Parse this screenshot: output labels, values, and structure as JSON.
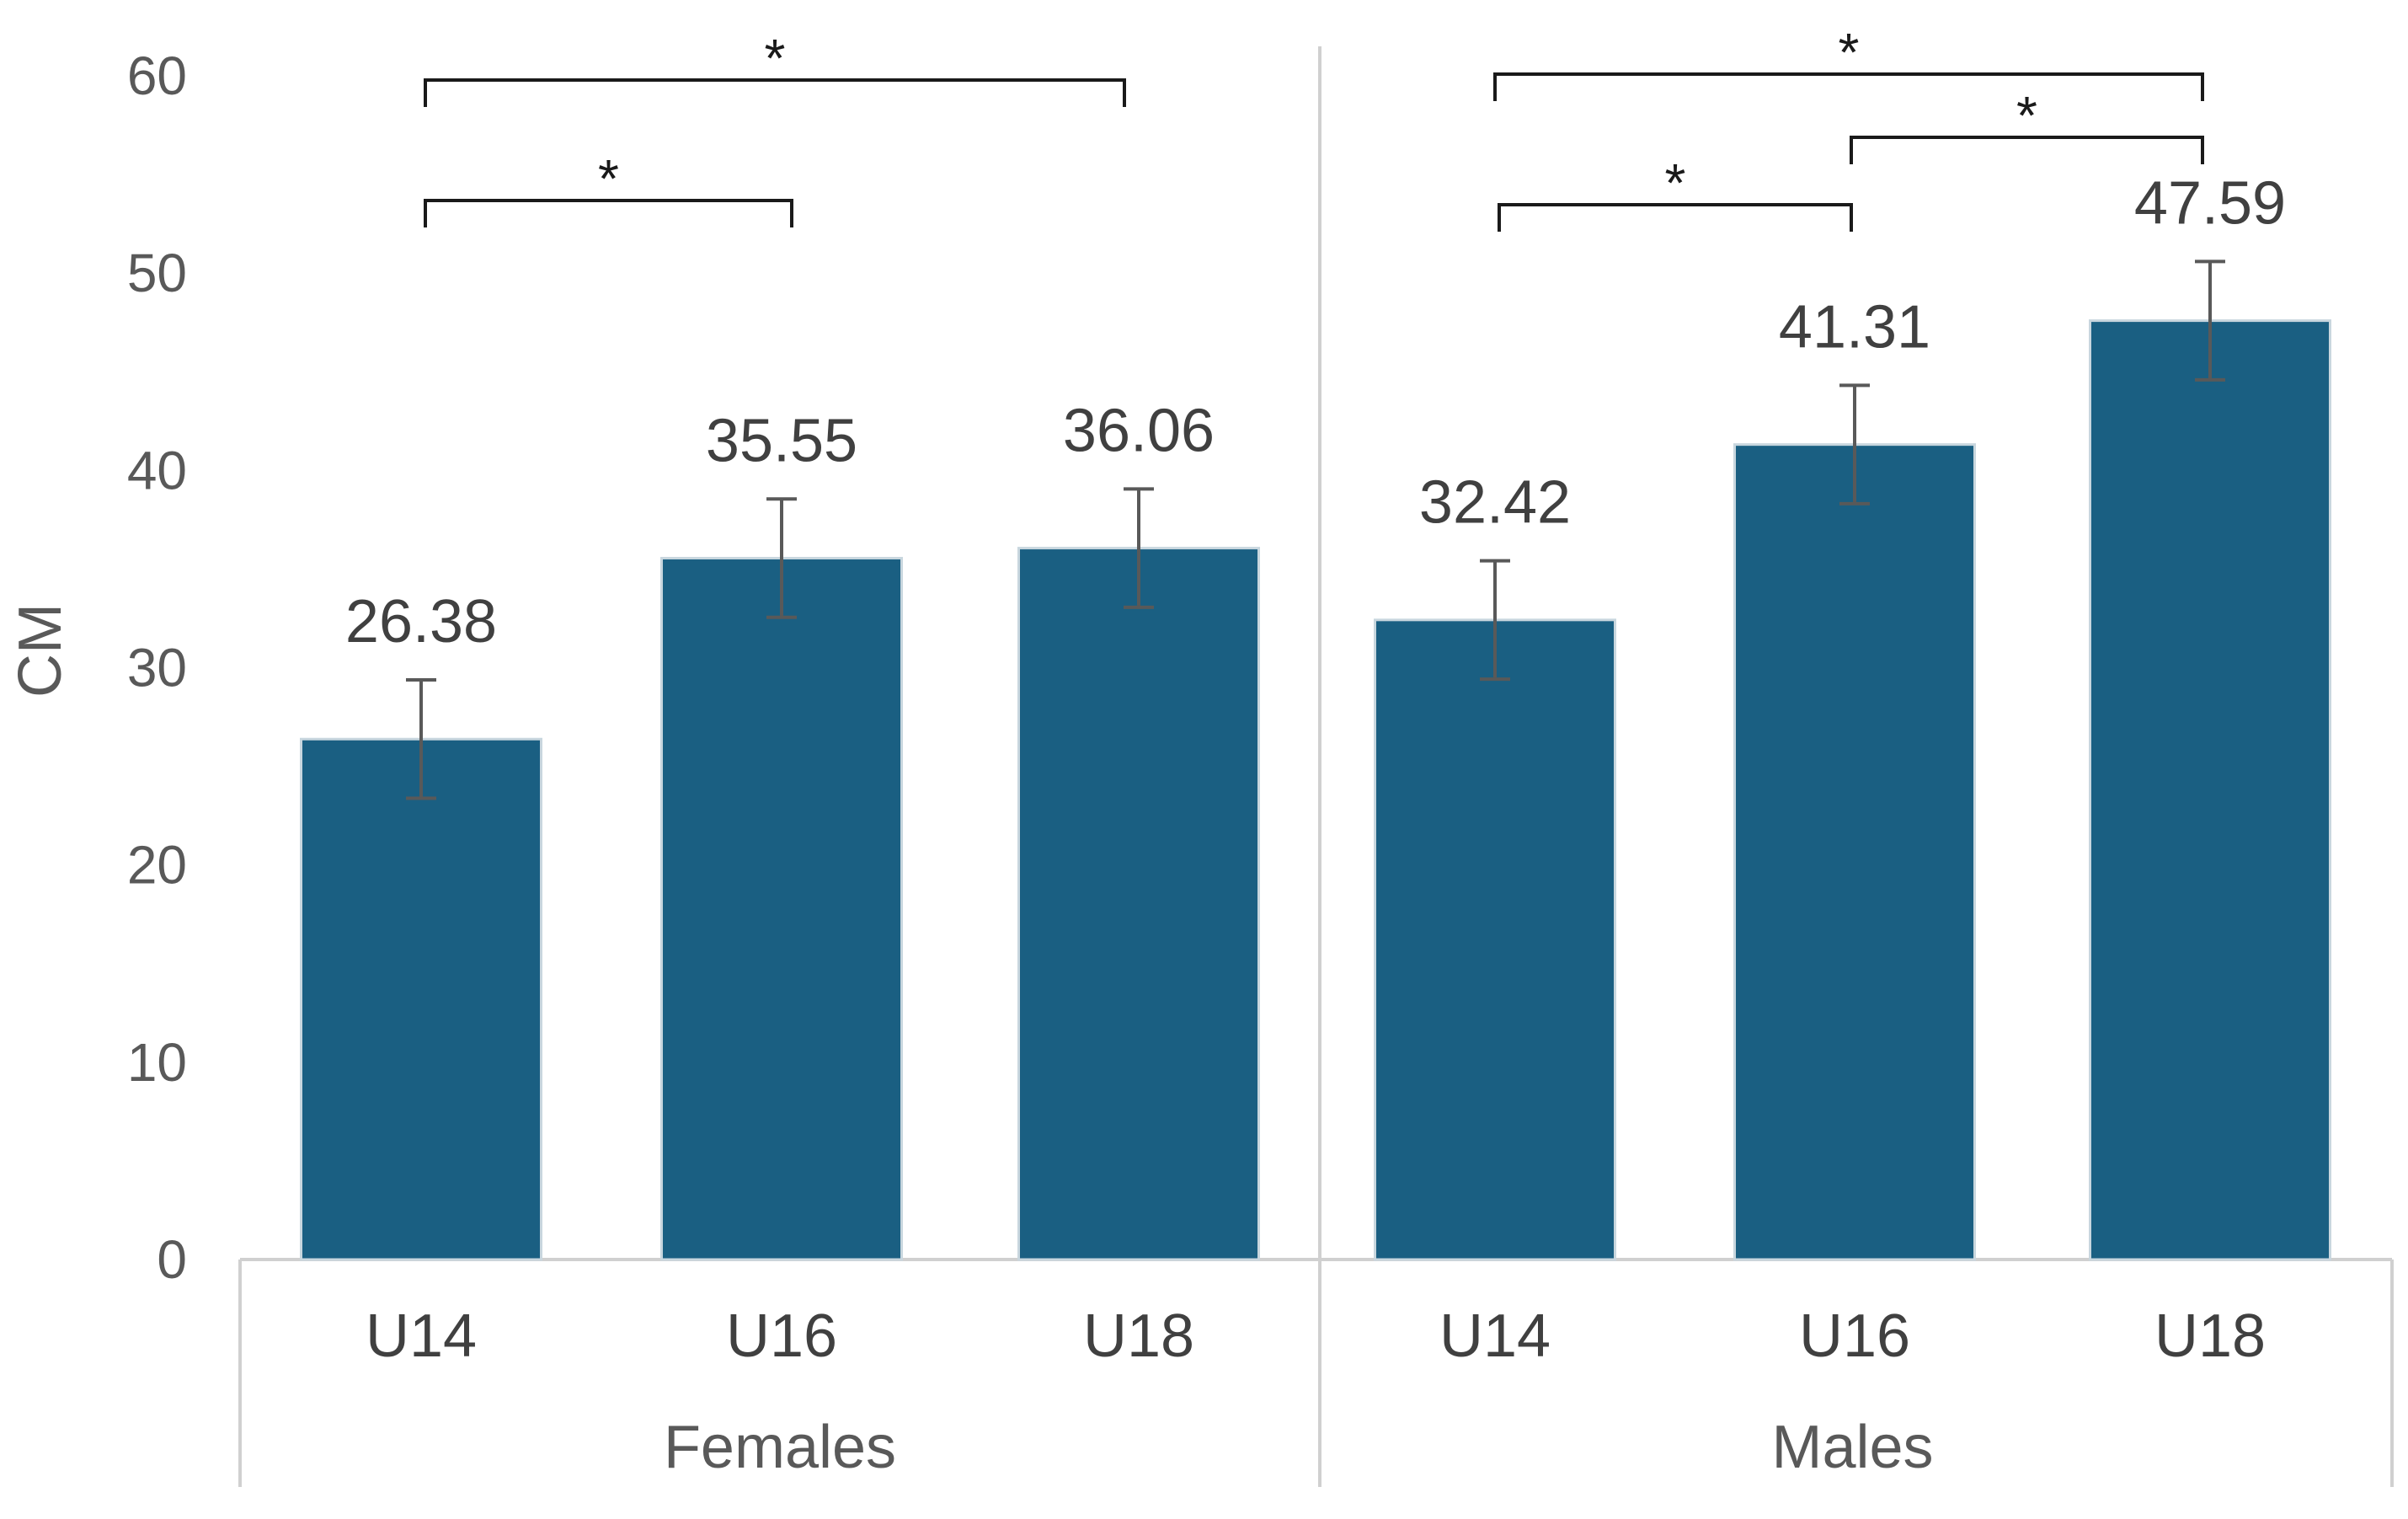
{
  "chart_data": {
    "type": "bar",
    "title": "",
    "xlabel": "",
    "ylabel": "CM",
    "ylim": [
      0,
      60
    ],
    "yticks": [
      0,
      10,
      20,
      30,
      40,
      50,
      60
    ],
    "grid": false,
    "legend": "none",
    "bar_color": "#1a5f82",
    "error_color": "#595959",
    "groups": [
      {
        "name": "Females",
        "bars": [
          {
            "category": "U14",
            "value": 26.38,
            "label": "26.38",
            "error": 3.0
          },
          {
            "category": "U16",
            "value": 35.55,
            "label": "35.55",
            "error": 3.0
          },
          {
            "category": "U18",
            "value": 36.06,
            "label": "36.06",
            "error": 3.0
          }
        ],
        "significance": [
          {
            "from": 0,
            "to": 1,
            "label": "*"
          },
          {
            "from": 0,
            "to": 2,
            "label": "*"
          }
        ]
      },
      {
        "name": "Males",
        "bars": [
          {
            "category": "U14",
            "value": 32.42,
            "label": "32.42",
            "error": 3.0
          },
          {
            "category": "U16",
            "value": 41.31,
            "label": "41.31",
            "error": 3.0
          },
          {
            "category": "U18",
            "value": 47.59,
            "label": "47.59",
            "error": 3.0
          }
        ],
        "significance": [
          {
            "from": 0,
            "to": 1,
            "label": "*"
          },
          {
            "from": 1,
            "to": 2,
            "label": "*"
          },
          {
            "from": 0,
            "to": 2,
            "label": "*"
          }
        ]
      }
    ]
  }
}
